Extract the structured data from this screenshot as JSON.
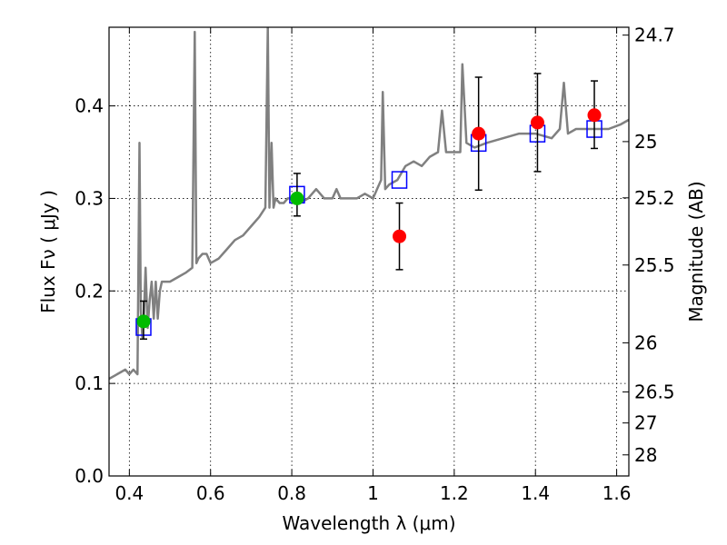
{
  "chart_data": {
    "type": "scatter",
    "xlabel": "Wavelength  λ (μm)",
    "ylabel": "Flux  Fν ( μJy )",
    "ylabel_right": "Magnitude (AB)",
    "xlim": [
      0.35,
      1.63
    ],
    "ylim": [
      0.0,
      0.485
    ],
    "grid": true,
    "x_ticks": [
      0.4,
      0.6,
      0.8,
      1.0,
      1.2,
      1.4,
      1.6
    ],
    "x_tick_labels": [
      "0.4",
      "0.6",
      "0.8",
      "1",
      "1.2",
      "1.4",
      "1.6"
    ],
    "y_ticks": [
      0.0,
      0.1,
      0.2,
      0.3,
      0.4
    ],
    "y_tick_labels": [
      "0.0",
      "0.1",
      "0.2",
      "0.3",
      "0.4"
    ],
    "right_ticks": [
      {
        "label": "24.7",
        "flux": 0.4765
      },
      {
        "label": "25",
        "flux": 0.3614
      },
      {
        "label": "25.2",
        "flux": 0.3006
      },
      {
        "label": "25.5",
        "flux": 0.228
      },
      {
        "label": "26",
        "flux": 0.1439
      },
      {
        "label": "26.5",
        "flux": 0.0908
      },
      {
        "label": "27",
        "flux": 0.0573
      },
      {
        "label": "28",
        "flux": 0.0228
      }
    ],
    "series": [
      {
        "kind": "line",
        "color": "#808080",
        "x": [
          0.35,
          0.37,
          0.39,
          0.4,
          0.41,
          0.42,
          0.425,
          0.428,
          0.432,
          0.436,
          0.44,
          0.445,
          0.45,
          0.455,
          0.46,
          0.465,
          0.47,
          0.475,
          0.48,
          0.49,
          0.5,
          0.52,
          0.54,
          0.555,
          0.561,
          0.565,
          0.57,
          0.58,
          0.59,
          0.6,
          0.62,
          0.64,
          0.66,
          0.68,
          0.7,
          0.72,
          0.735,
          0.741,
          0.745,
          0.75,
          0.755,
          0.76,
          0.77,
          0.78,
          0.79,
          0.8,
          0.82,
          0.84,
          0.86,
          0.88,
          0.9,
          0.91,
          0.92,
          0.94,
          0.96,
          0.98,
          1.0,
          1.01,
          1.02,
          1.024,
          1.03,
          1.04,
          1.06,
          1.08,
          1.1,
          1.12,
          1.14,
          1.16,
          1.17,
          1.18,
          1.2,
          1.215,
          1.22,
          1.23,
          1.25,
          1.28,
          1.32,
          1.36,
          1.4,
          1.44,
          1.46,
          1.47,
          1.48,
          1.5,
          1.55,
          1.58,
          1.61,
          1.63
        ],
        "y": [
          0.105,
          0.11,
          0.115,
          0.11,
          0.115,
          0.11,
          0.36,
          0.18,
          0.15,
          0.175,
          0.225,
          0.16,
          0.19,
          0.21,
          0.17,
          0.21,
          0.17,
          0.2,
          0.21,
          0.21,
          0.21,
          0.215,
          0.22,
          0.225,
          0.48,
          0.23,
          0.235,
          0.24,
          0.24,
          0.23,
          0.235,
          0.245,
          0.255,
          0.26,
          0.27,
          0.28,
          0.29,
          0.485,
          0.29,
          0.36,
          0.29,
          0.3,
          0.295,
          0.295,
          0.3,
          0.3,
          0.295,
          0.3,
          0.31,
          0.3,
          0.3,
          0.31,
          0.3,
          0.3,
          0.3,
          0.305,
          0.3,
          0.31,
          0.32,
          0.415,
          0.31,
          0.315,
          0.32,
          0.335,
          0.34,
          0.335,
          0.345,
          0.35,
          0.395,
          0.35,
          0.35,
          0.35,
          0.445,
          0.36,
          0.355,
          0.36,
          0.365,
          0.37,
          0.37,
          0.365,
          0.375,
          0.425,
          0.37,
          0.375,
          0.375,
          0.375,
          0.38,
          0.385
        ]
      },
      {
        "kind": "errorbar",
        "color": "#ff0000",
        "marker": "circle",
        "x": [
          1.065,
          1.26,
          1.405,
          1.545
        ],
        "y": [
          0.259,
          0.37,
          0.382,
          0.39
        ],
        "yerr_low": [
          0.036,
          0.061,
          0.053,
          0.036
        ],
        "yerr_high": [
          0.036,
          0.061,
          0.053,
          0.037
        ]
      },
      {
        "kind": "errorbar",
        "color": "#00bb00",
        "marker": "circle",
        "x": [
          0.435,
          0.813
        ],
        "y": [
          0.167,
          0.3
        ],
        "yerr_low": [
          0.019,
          0.019
        ],
        "yerr_high": [
          0.022,
          0.027
        ]
      },
      {
        "kind": "scatter",
        "color": "#0000ff",
        "marker": "open-square",
        "x": [
          0.435,
          0.813,
          1.065,
          1.26,
          1.405,
          1.545
        ],
        "y": [
          0.161,
          0.304,
          0.32,
          0.36,
          0.37,
          0.375
        ]
      }
    ]
  }
}
